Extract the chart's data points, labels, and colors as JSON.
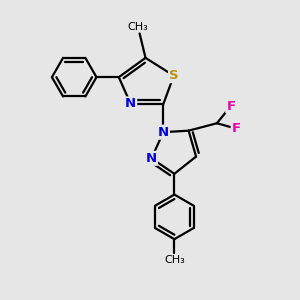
{
  "bg_color": "#e6e6e6",
  "bond_color": "#000000",
  "bond_width": 1.6,
  "S_color": "#b8960c",
  "N_color": "#0000ee",
  "F_color": "#ee00aa",
  "font_size": 9,
  "fig_size": [
    3.0,
    3.0
  ],
  "dpi": 100,
  "xlim": [
    0,
    10
  ],
  "ylim": [
    0,
    10
  ]
}
